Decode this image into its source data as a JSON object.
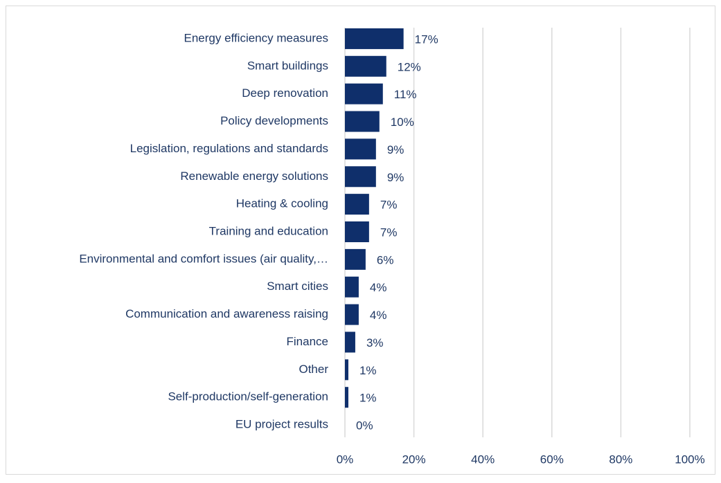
{
  "chart_data": {
    "type": "bar",
    "orientation": "horizontal",
    "categories": [
      "Energy efficiency measures",
      "Smart buildings",
      "Deep renovation",
      "Policy developments",
      "Legislation, regulations and standards",
      "Renewable energy solutions",
      "Heating & cooling",
      "Training and education",
      "Environmental and comfort issues (air quality,…",
      "Smart cities",
      "Communication and awareness raising",
      "Finance",
      "Other",
      "Self-production/self-generation",
      "EU project results"
    ],
    "values": [
      17,
      12,
      11,
      10,
      9,
      9,
      7,
      7,
      6,
      4,
      4,
      3,
      1,
      1,
      0
    ],
    "value_labels": [
      "17%",
      "12%",
      "11%",
      "10%",
      "9%",
      "9%",
      "7%",
      "7%",
      "6%",
      "4%",
      "4%",
      "3%",
      "1%",
      "1%",
      "0%"
    ],
    "color": "#0f2f6b",
    "xlim": [
      0,
      100
    ],
    "xticks": [
      {
        "value": 0,
        "label": "0%"
      },
      {
        "value": 20,
        "label": "20%"
      },
      {
        "value": 40,
        "label": "40%"
      },
      {
        "value": 60,
        "label": "60%"
      },
      {
        "value": 80,
        "label": "80%"
      },
      {
        "value": 100,
        "label": "100%"
      }
    ],
    "grid": true
  }
}
